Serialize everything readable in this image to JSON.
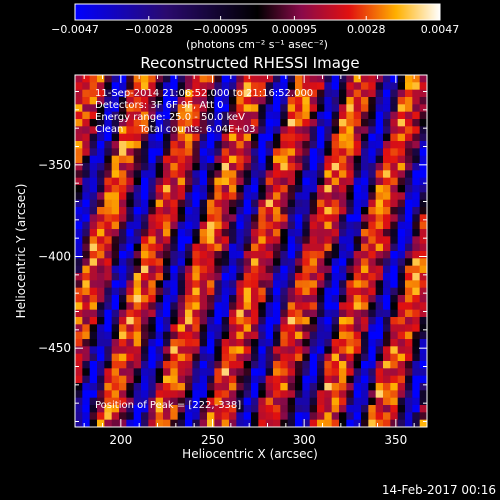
{
  "chart_data": {
    "type": "heatmap",
    "title": "Reconstructed RHESSI Image",
    "xlabel": "Heliocentric X (arcsec)",
    "ylabel": "Heliocentric Y (arcsec)",
    "xlim": [
      175,
      367
    ],
    "ylim": [
      -493,
      -301
    ],
    "x_ticks": [
      "200",
      "250",
      "300",
      "350"
    ],
    "x_tick_values": [
      200,
      250,
      300,
      350
    ],
    "y_ticks": [
      "-350",
      "-400",
      "-450"
    ],
    "y_tick_values": [
      -350,
      -400,
      -450
    ],
    "colorbar": {
      "min": -0.0047,
      "max": 0.0047,
      "ticks": [
        "-0.0047",
        "-0.0028",
        "-0.00095",
        "0.00095",
        "0.0028",
        "0.0047"
      ],
      "tick_values": [
        -0.0047,
        -0.0028,
        -0.00095,
        0.00095,
        0.0028,
        0.0047
      ],
      "unit_label": "(photons cm⁻² s⁻¹ asec⁻²)"
    },
    "annotations": [
      "11-Sep-2014 21:06:52.000 to 21:16:52.000",
      "Detectors: 3F 6F 9F, Att 0",
      "Energy range: 25.0 - 50.0 keV",
      "Clean     Total counts: 6.04E+03"
    ],
    "peak_label": "Position of Peak = [222,-338]",
    "pattern": {
      "description_free": true,
      "stripe_period": 7.4,
      "stripe_slant": 0.27,
      "grid_cells": 48
    }
  },
  "footer": {
    "timestamp": "14-Feb-2017 00:16"
  }
}
